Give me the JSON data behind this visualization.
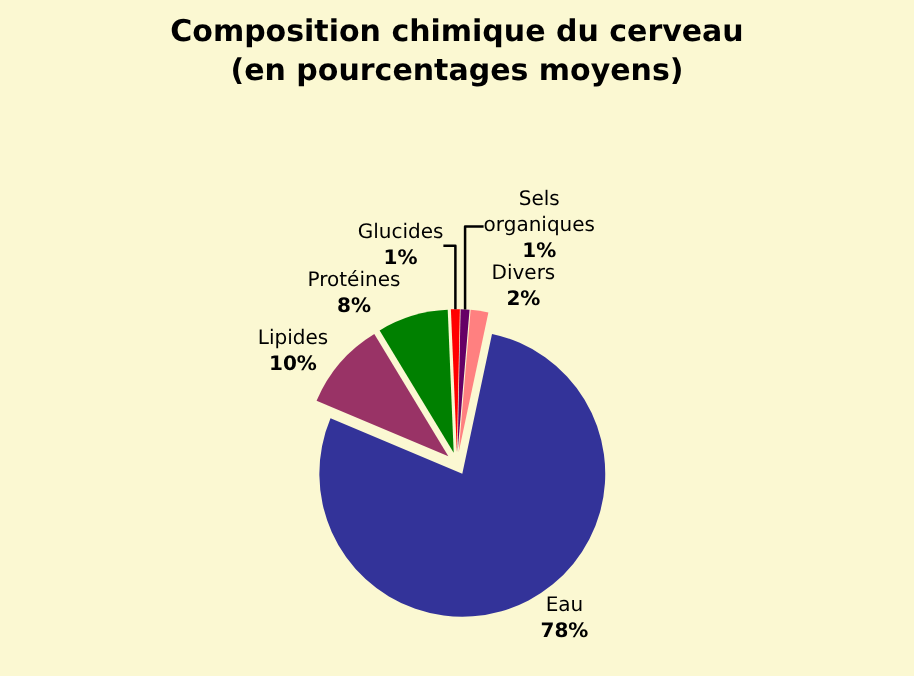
{
  "chart_data": {
    "type": "pie",
    "title": "Composition chimique du cerveau\n(en pourcentages moyens)",
    "categories": [
      "Eau",
      "Lipides",
      "Protéines",
      "Glucides",
      "Sels organiques",
      "Divers"
    ],
    "values": [
      78,
      10,
      8,
      1,
      1,
      2
    ],
    "colors": [
      "#333399",
      "#993366",
      "#008000",
      "#ff0000",
      "#660066",
      "#ff8080"
    ],
    "value_labels": [
      "78%",
      "10%",
      "8%",
      "1%",
      "1%",
      "2%"
    ],
    "legend": false
  }
}
